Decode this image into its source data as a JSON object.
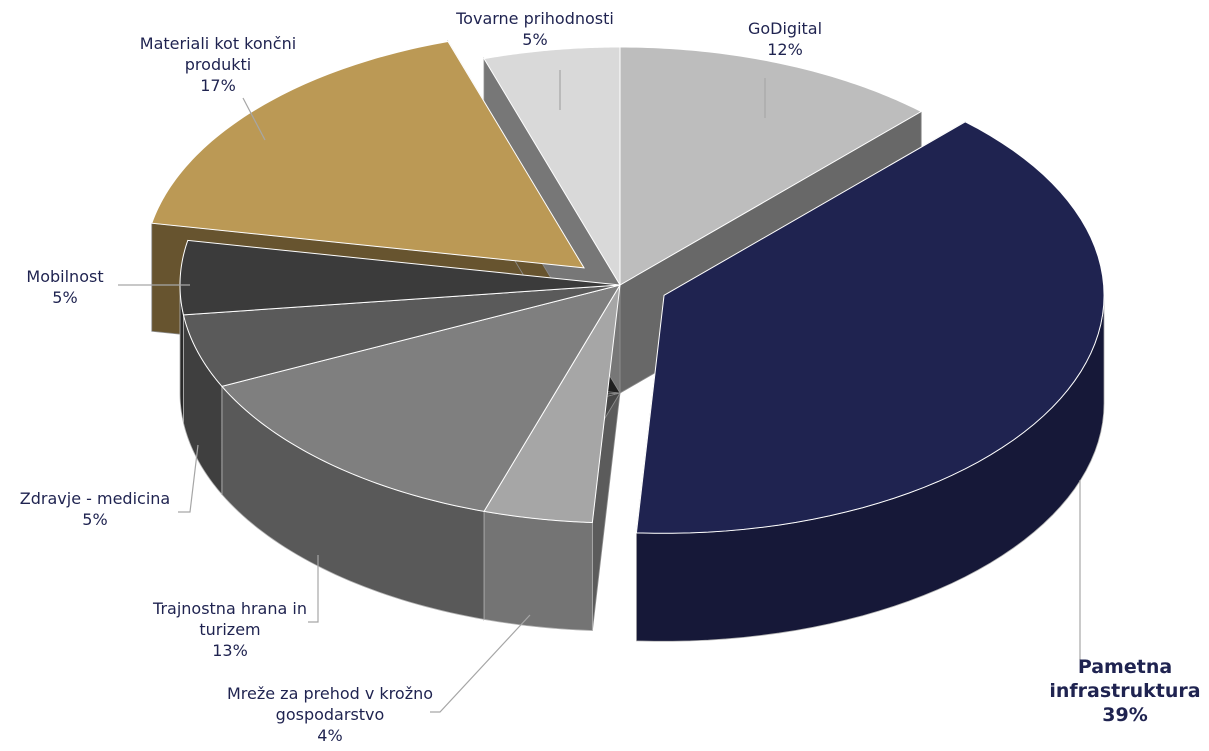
{
  "chart_data": {
    "type": "pie",
    "categories": [
      "GoDigital",
      "Pametna infrastruktura",
      "Mreže za prehod v krožno gospodarstvo",
      "Trajnostna hrana in turizem",
      "Zdravje - medicina",
      "Mobilnost",
      "Materiali kot končni produkti",
      "Tovarne prihodnosti"
    ],
    "values": [
      12,
      39,
      4,
      13,
      5,
      5,
      17,
      5
    ],
    "value_labels": [
      "12%",
      "39%",
      "4%",
      "13%",
      "5%",
      "5%",
      "17%",
      "5%"
    ],
    "colors": [
      "#bdbdbd",
      "#1f2350",
      "#a6a6a6",
      "#7f7f7f",
      "#5a5a5a",
      "#3b3b3b",
      "#bb9955",
      "#d9d9d9"
    ],
    "exploded": [
      "Pametna infrastruktura",
      "Materiali kot končni produkti"
    ]
  }
}
